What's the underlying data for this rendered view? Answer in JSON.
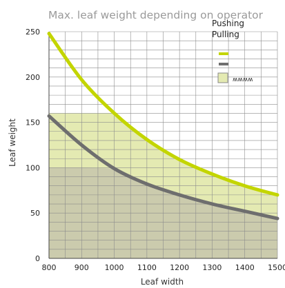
{
  "chart_data": {
    "type": "line",
    "title": "Max. leaf weight depending on operator",
    "xlabel": "Leaf width",
    "ylabel": "Leaf weight",
    "xlim": [
      800,
      1500
    ],
    "ylim": [
      0,
      250
    ],
    "x_ticks": [
      800,
      900,
      1000,
      1100,
      1200,
      1300,
      1400,
      1500
    ],
    "y_ticks": [
      0,
      50,
      100,
      150,
      200,
      250
    ],
    "grid": true,
    "legend_position": "top-right",
    "series": [
      {
        "name": "Pushing",
        "color": "#c3d500",
        "x": [
          800,
          900,
          1000,
          1100,
          1200,
          1300,
          1400,
          1500
        ],
        "values": [
          248,
          197,
          160,
          131,
          109,
          93,
          80,
          70
        ]
      },
      {
        "name": "Pulling",
        "color": "#6e6e6e",
        "x": [
          800,
          900,
          1000,
          1100,
          1200,
          1300,
          1400,
          1500
        ],
        "values": [
          157,
          125,
          99,
          82,
          70,
          60,
          52,
          44
        ]
      }
    ],
    "regions": [
      {
        "color": "#e4eab2",
        "x_range": [
          800,
          1500
        ],
        "y_max": 160,
        "upper": "Pushing"
      },
      {
        "color": "#cbcbad",
        "x_range": [
          800,
          1500
        ],
        "y_max": 100,
        "upper": "Pulling"
      }
    ],
    "legend_spring_label": "ʍʍʍʍ"
  }
}
